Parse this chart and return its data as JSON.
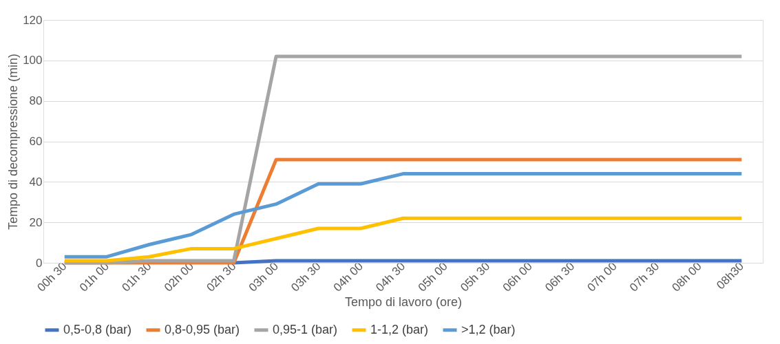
{
  "chart_data": {
    "type": "line",
    "xlabel": "Tempo di lavoro (ore)",
    "ylabel": "Tempo di decompressione (min)",
    "categories": [
      "00h 30",
      "01h 00",
      "01h 30",
      "02h 00",
      "02h 30",
      "03h 00",
      "03h 30",
      "04h 00",
      "04h 30",
      "05h 00",
      "05h 30",
      "06h 00",
      "06h 30",
      "07h 00",
      "07h 30",
      "08h 00",
      "08h30"
    ],
    "series": [
      {
        "name": "0,5-0,8 (bar)",
        "color": "#4472c4",
        "values": [
          null,
          null,
          null,
          null,
          0,
          1,
          1,
          1,
          1,
          1,
          1,
          1,
          1,
          1,
          1,
          1,
          1
        ]
      },
      {
        "name": "0,8-0,95 (bar)",
        "color": "#ed7d31",
        "values": [
          0,
          0,
          0,
          0,
          0,
          51,
          51,
          51,
          51,
          51,
          51,
          51,
          51,
          51,
          51,
          51,
          51
        ]
      },
      {
        "name": "0,95-1 (bar)",
        "color": "#a5a5a5",
        "values": [
          0,
          0,
          1,
          1,
          1,
          102,
          102,
          102,
          102,
          102,
          102,
          102,
          102,
          102,
          102,
          102,
          102
        ]
      },
      {
        "name": "1-1,2 (bar)",
        "color": "#ffc000",
        "values": [
          1,
          1,
          3,
          7,
          7,
          12,
          17,
          17,
          22,
          22,
          22,
          22,
          22,
          22,
          22,
          22,
          22
        ]
      },
      {
        "name": ">1,2 (bar)",
        "color": "#5b9bd5",
        "values": [
          3,
          3,
          9,
          14,
          24,
          29,
          39,
          39,
          44,
          44,
          44,
          44,
          44,
          44,
          44,
          44,
          44
        ]
      }
    ],
    "ylim": [
      0,
      120
    ],
    "yticks": [
      0,
      20,
      40,
      60,
      80,
      100,
      120
    ],
    "grid": "y",
    "legend": "bottom",
    "marker": "none",
    "line_style": "solid"
  }
}
